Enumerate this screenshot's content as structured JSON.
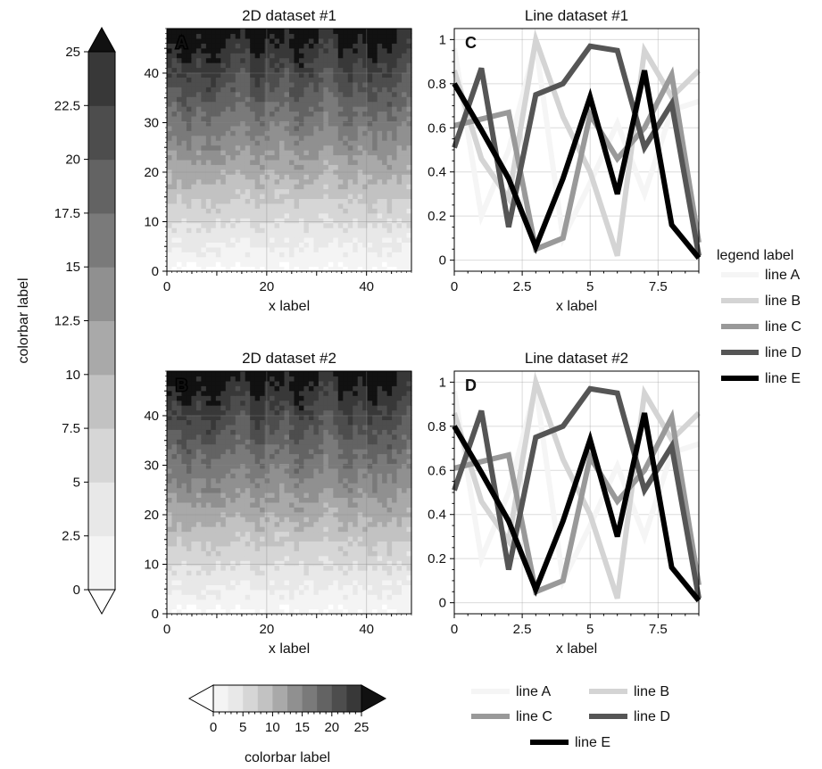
{
  "colorbar_left": {
    "label": "colorbar label",
    "ticks": [
      "0",
      "2.5",
      "5",
      "7.5",
      "10",
      "12.5",
      "15",
      "17.5",
      "20",
      "22.5",
      "25"
    ],
    "levels": [
      0,
      2.5,
      5,
      7.5,
      10,
      12.5,
      15,
      17.5,
      20,
      22.5,
      25
    ],
    "extend": "both"
  },
  "colorbar_bottom": {
    "label": "colorbar label",
    "ticks": [
      "0",
      "5",
      "10",
      "15",
      "20",
      "25"
    ],
    "levels": [
      0,
      2.5,
      5,
      7.5,
      10,
      12.5,
      15,
      17.5,
      20,
      22.5,
      25
    ],
    "extend": "both"
  },
  "colors": {
    "levels": [
      "#f4f4f4",
      "#e8e8e8",
      "#d6d6d6",
      "#c2c2c2",
      "#a9a9a9",
      "#909090",
      "#7a7a7a",
      "#636363",
      "#4d4d4d",
      "#383838",
      "#222222"
    ],
    "over": "#111111",
    "under": "#ffffff",
    "lines": [
      "#f5f5f5",
      "#d4d4d4",
      "#999999",
      "#555555",
      "#000000"
    ]
  },
  "legend_right": {
    "title": "legend label",
    "entries": [
      "line A",
      "line B",
      "line C",
      "line D",
      "line E"
    ]
  },
  "legend_bottom": {
    "entries": [
      "line A",
      "line B",
      "line C",
      "line D",
      "line E"
    ]
  },
  "chart_data": [
    {
      "type": "heatmap",
      "panel": "A",
      "title": "2D dataset #1",
      "xlabel": "x label",
      "xlim": [
        0,
        49
      ],
      "ylim": [
        0,
        49
      ],
      "xticks": [
        "0",
        "20",
        "40"
      ],
      "yticks": [
        "0",
        "10",
        "20",
        "30",
        "40"
      ],
      "grid": true,
      "note_values": "filled contours; values increase with y from ~0 at bottom to ~25 at top",
      "levels": [
        0,
        2.5,
        5,
        7.5,
        10,
        12.5,
        15,
        17.5,
        20,
        22.5,
        25
      ]
    },
    {
      "type": "line",
      "panel": "C",
      "title": "Line dataset #1",
      "xlabel": "x label",
      "xlim": [
        0,
        9
      ],
      "ylim": [
        -0.05,
        1.05
      ],
      "xticks": [
        "0",
        "2.5",
        "5",
        "7.5"
      ],
      "yticks": [
        "0",
        "0.2",
        "0.4",
        "0.6",
        "0.8",
        "1"
      ],
      "grid": true,
      "x": [
        0,
        1,
        2,
        3,
        4,
        5,
        6,
        7,
        8,
        9
      ],
      "series": [
        {
          "name": "line A",
          "values": [
            0.96,
            0.2,
            0.5,
            0.98,
            0.1,
            0.35,
            0.62,
            0.3,
            0.68,
            0.72
          ]
        },
        {
          "name": "line B",
          "values": [
            0.86,
            0.46,
            0.28,
            1.0,
            0.65,
            0.4,
            0.02,
            0.95,
            0.74,
            0.86
          ]
        },
        {
          "name": "line C",
          "values": [
            0.61,
            0.64,
            0.67,
            0.05,
            0.1,
            0.66,
            0.46,
            0.6,
            0.84,
            0.08
          ]
        },
        {
          "name": "line D",
          "values": [
            0.51,
            0.87,
            0.15,
            0.75,
            0.8,
            0.97,
            0.95,
            0.51,
            0.71,
            0.02
          ]
        },
        {
          "name": "line E",
          "values": [
            0.8,
            0.59,
            0.37,
            0.06,
            0.37,
            0.74,
            0.3,
            0.86,
            0.16,
            0.01
          ]
        }
      ]
    },
    {
      "type": "heatmap",
      "panel": "B",
      "title": "2D dataset #2",
      "xlabel": "x label",
      "xlim": [
        0,
        49
      ],
      "ylim": [
        0,
        49
      ],
      "xticks": [
        "0",
        "20",
        "40"
      ],
      "yticks": [
        "0",
        "10",
        "20",
        "30",
        "40"
      ],
      "grid": true,
      "levels": [
        0,
        2.5,
        5,
        7.5,
        10,
        12.5,
        15,
        17.5,
        20,
        22.5,
        25
      ]
    },
    {
      "type": "line",
      "panel": "D",
      "title": "Line dataset #2",
      "xlabel": "x label",
      "xlim": [
        0,
        9
      ],
      "ylim": [
        -0.05,
        1.05
      ],
      "xticks": [
        "0",
        "2.5",
        "5",
        "7.5"
      ],
      "yticks": [
        "0",
        "0.2",
        "0.4",
        "0.6",
        "0.8",
        "1"
      ],
      "grid": true,
      "x": [
        0,
        1,
        2,
        3,
        4,
        5,
        6,
        7,
        8,
        9
      ],
      "series": [
        {
          "name": "line A",
          "values": [
            0.96,
            0.2,
            0.5,
            0.98,
            0.1,
            0.35,
            0.62,
            0.3,
            0.68,
            0.72
          ]
        },
        {
          "name": "line B",
          "values": [
            0.86,
            0.46,
            0.28,
            1.0,
            0.65,
            0.4,
            0.02,
            0.95,
            0.74,
            0.86
          ]
        },
        {
          "name": "line C",
          "values": [
            0.61,
            0.64,
            0.67,
            0.05,
            0.1,
            0.66,
            0.46,
            0.6,
            0.84,
            0.08
          ]
        },
        {
          "name": "line D",
          "values": [
            0.51,
            0.87,
            0.15,
            0.75,
            0.8,
            0.97,
            0.95,
            0.51,
            0.71,
            0.02
          ]
        },
        {
          "name": "line E",
          "values": [
            0.8,
            0.59,
            0.37,
            0.06,
            0.37,
            0.74,
            0.3,
            0.86,
            0.16,
            0.01
          ]
        }
      ]
    }
  ]
}
